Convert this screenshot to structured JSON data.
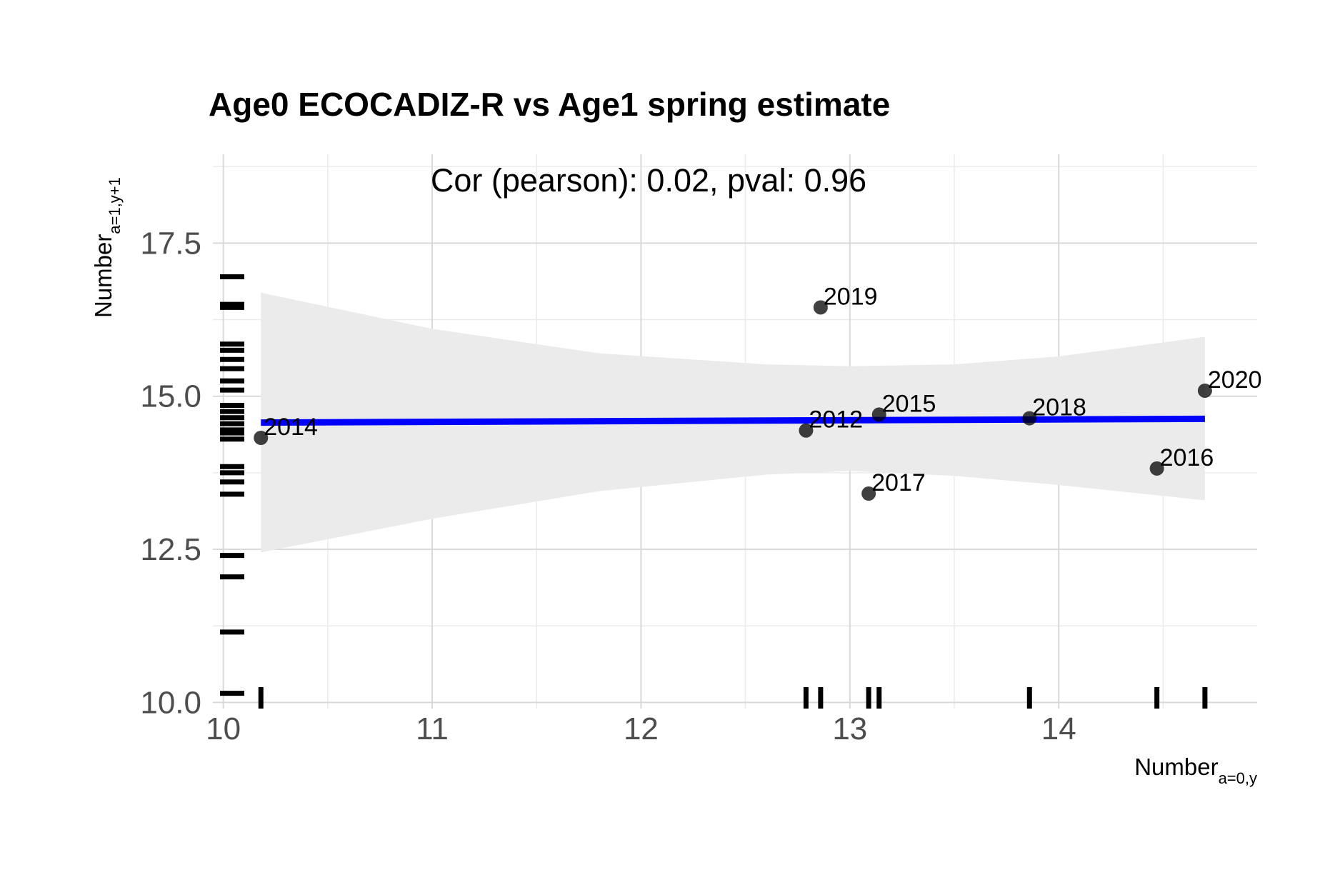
{
  "chart_data": {
    "type": "scatter",
    "title": "Age0 ECOCADIZ-R vs Age1 spring estimate",
    "annotation": "Cor (pearson): 0.02, pval: 0.96",
    "xlabel": {
      "main": "Number",
      "sub": "a=0,y"
    },
    "ylabel": {
      "main": "Number",
      "sub": "a=1,y+1"
    },
    "xlim": [
      9.95,
      14.95
    ],
    "ylim": [
      9.9,
      18.95
    ],
    "x_ticks": [
      10,
      11,
      12,
      13,
      14
    ],
    "y_ticks": [
      10.0,
      12.5,
      15.0,
      17.5
    ],
    "y_tick_labels": [
      "10.0",
      "12.5",
      "15.0",
      "17.5"
    ],
    "grid": true,
    "points": [
      {
        "label": "2014",
        "x": 10.18,
        "y": 14.32
      },
      {
        "label": "2012",
        "x": 12.79,
        "y": 14.44
      },
      {
        "label": "2019",
        "x": 12.86,
        "y": 16.45
      },
      {
        "label": "2017",
        "x": 13.09,
        "y": 13.41
      },
      {
        "label": "2015",
        "x": 13.14,
        "y": 14.7
      },
      {
        "label": "2018",
        "x": 13.86,
        "y": 14.64
      },
      {
        "label": "2016",
        "x": 14.47,
        "y": 13.82
      },
      {
        "label": "2020",
        "x": 14.7,
        "y": 15.09
      }
    ],
    "regression": {
      "x": [
        10.18,
        14.7
      ],
      "y": [
        14.57,
        14.63
      ],
      "color": "#0000ff"
    },
    "confidence_band": {
      "x": [
        10.18,
        11.0,
        11.8,
        12.6,
        13.0,
        13.5,
        14.0,
        14.7
      ],
      "upper": [
        16.69,
        16.1,
        15.7,
        15.52,
        15.49,
        15.52,
        15.65,
        15.97
      ],
      "lower": [
        12.45,
        13.0,
        13.45,
        13.72,
        13.78,
        13.7,
        13.55,
        13.3
      ],
      "color": "#ebebeb"
    },
    "rug_y": [
      10.15,
      11.15,
      12.05,
      12.4,
      13.4,
      13.6,
      13.75,
      13.85,
      14.3,
      14.4,
      14.45,
      14.55,
      14.65,
      14.75,
      14.85,
      15.1,
      15.25,
      15.45,
      15.6,
      15.75,
      15.85,
      16.45,
      16.5,
      16.95
    ],
    "rug_x": [
      10.18,
      12.79,
      12.86,
      13.09,
      13.14,
      13.86,
      14.47,
      14.7
    ],
    "marker_color": "#000000"
  }
}
